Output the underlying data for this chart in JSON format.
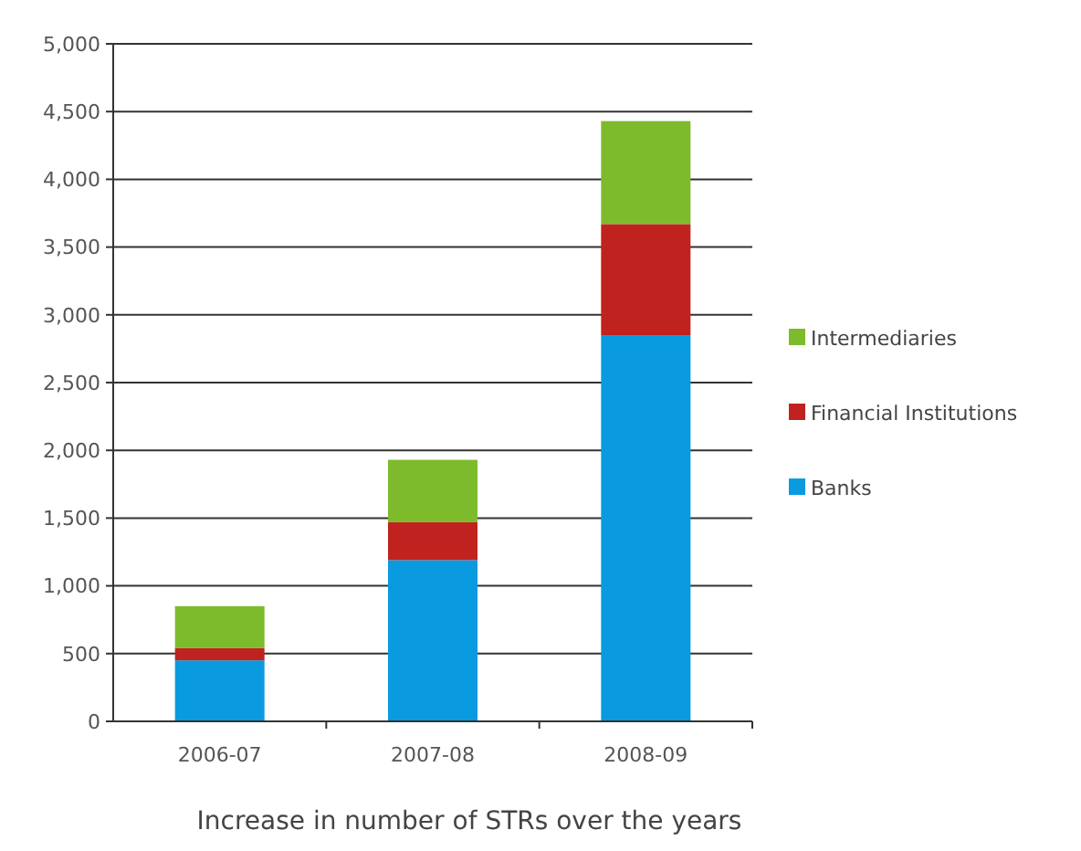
{
  "chart_data": {
    "type": "bar",
    "stacked": true,
    "title": "Increase in number of STRs over the years",
    "categories": [
      "2006-07",
      "2007-08",
      "2008-09"
    ],
    "series": [
      {
        "name": "Banks",
        "color": "#0a9ae0",
        "values": [
          450,
          1190,
          2850
        ]
      },
      {
        "name": "Financial Institutions",
        "color": "#c0221f",
        "values": [
          90,
          280,
          820
        ]
      },
      {
        "name": "Intermediaries",
        "color": "#7dbb2c",
        "values": [
          310,
          460,
          760
        ]
      }
    ],
    "ylim": [
      0,
      5000
    ],
    "yticks": [
      {
        "value": 0,
        "label": "0"
      },
      {
        "value": 500,
        "label": "500"
      },
      {
        "value": 1000,
        "label": "1,000"
      },
      {
        "value": 1500,
        "label": "1,500"
      },
      {
        "value": 2000,
        "label": "2,000"
      },
      {
        "value": 2500,
        "label": "2,500"
      },
      {
        "value": 3000,
        "label": "3,000"
      },
      {
        "value": 3500,
        "label": "3,500"
      },
      {
        "value": 4000,
        "label": "4,000"
      },
      {
        "value": 4500,
        "label": "4,500"
      },
      {
        "value": 5000,
        "label": "5,000"
      }
    ],
    "grid": "y",
    "legend": "right"
  }
}
